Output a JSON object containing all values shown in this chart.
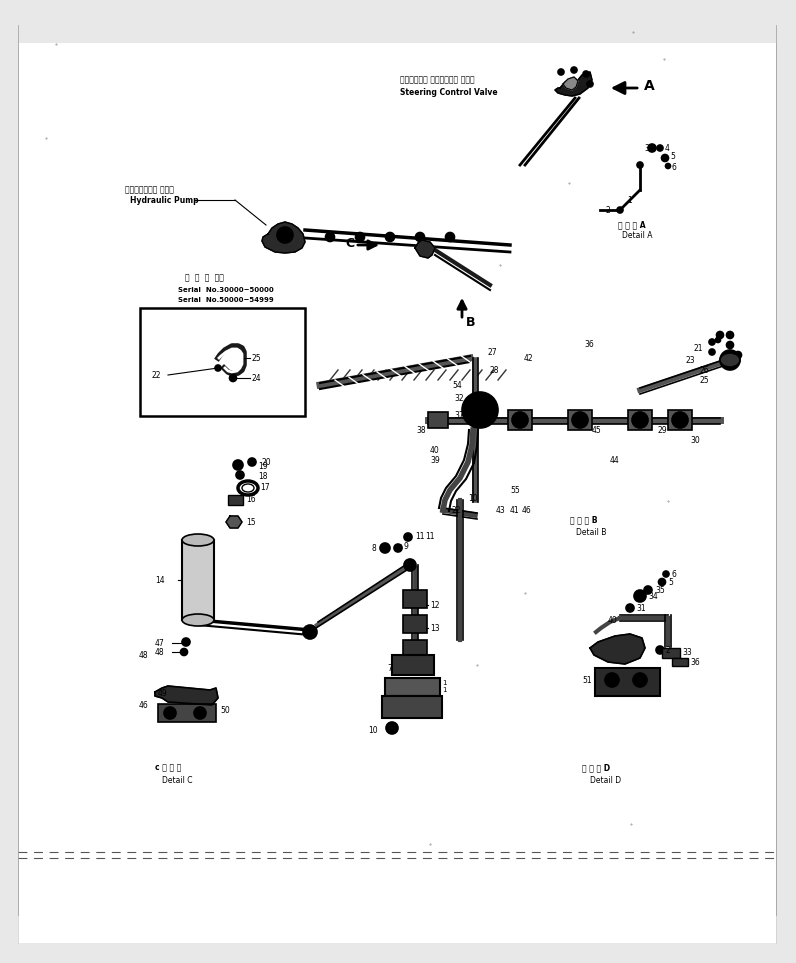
{
  "bg_color": "#f0f0f0",
  "fig_width": 7.96,
  "fig_height": 9.63,
  "dpi": 100,
  "content_bg": "#ffffff",
  "border_color": "#aaaaaa",
  "scan_gray": "#e8e8e8",
  "line_color": "#000000",
  "text_color": "#000000",
  "diagram_elements": {
    "steering_valve_label_line1": "ステアリング コントロール バルブ",
    "steering_valve_label_line2": "Steering Control Valve",
    "hydraulic_pump_line1": "ハイドロリック ポンプ",
    "hydraulic_pump_line2": "Hydraulic Pump",
    "detail_A": "詳細 図 A\nDetail A",
    "detail_B": "詳細 図 B\nDetail B",
    "detail_C": "c 詳細 図\nDetail C",
    "detail_D": "詳細 図 D\nDetail D",
    "serial_line1": "商品 コ ー ド",
    "serial_line2": "Serial  No.30000~50000",
    "serial_line3": "Serial  No.50000~54999",
    "arrow_A": "A",
    "arrow_B": "B",
    "arrow_C": "C"
  }
}
